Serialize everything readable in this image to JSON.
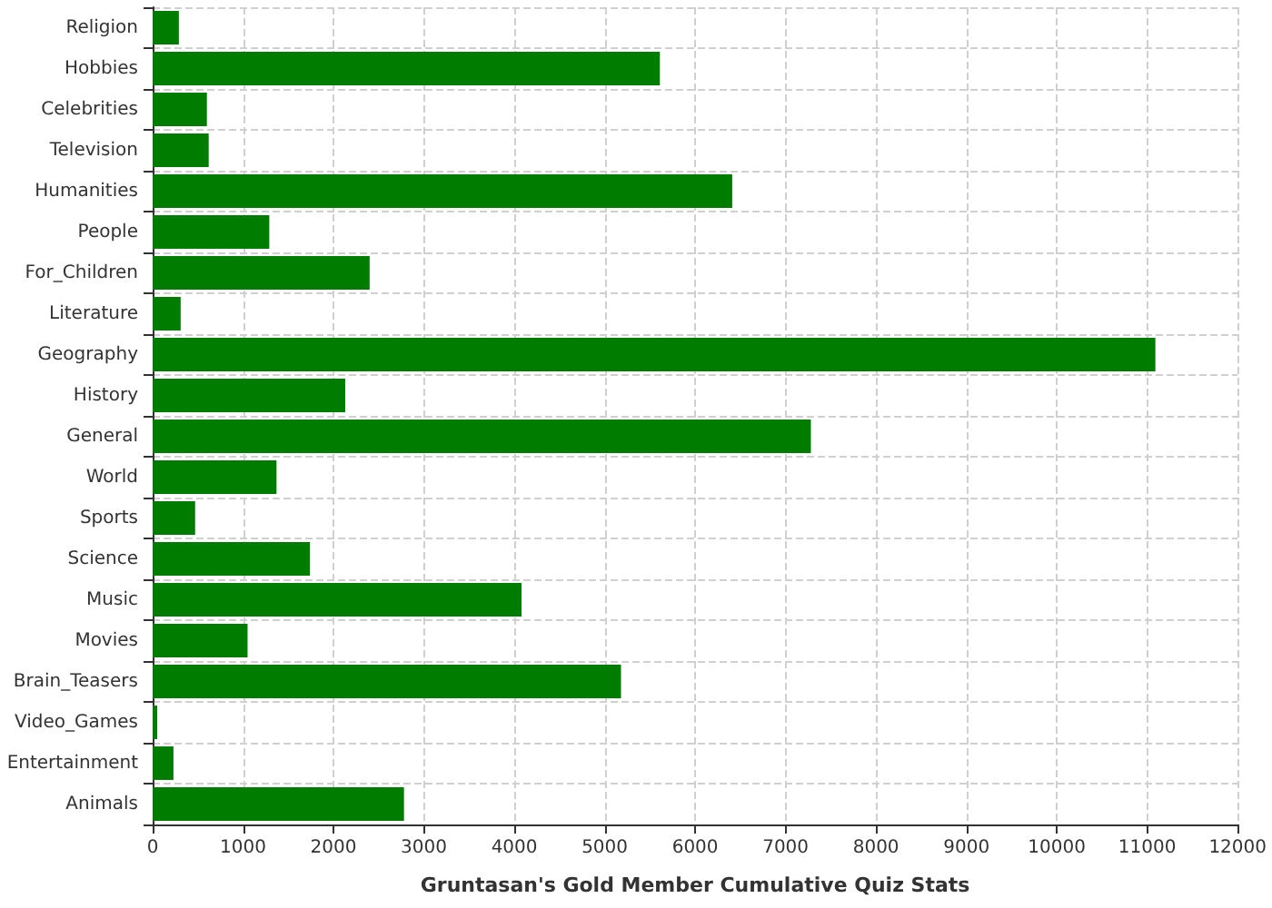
{
  "chart_data": {
    "type": "bar",
    "orientation": "horizontal",
    "xlabel": "Gruntasan's Gold Member Cumulative Quiz Stats",
    "categories": [
      "Religion",
      "Hobbies",
      "Celebrities",
      "Television",
      "Humanities",
      "People",
      "For_Children",
      "Literature",
      "Geography",
      "History",
      "General",
      "World",
      "Sports",
      "Science",
      "Music",
      "Movies",
      "Brain_Teasers",
      "Video_Games",
      "Entertainment",
      "Animals"
    ],
    "values": [
      290,
      5610,
      600,
      620,
      6410,
      1290,
      2400,
      310,
      11090,
      2130,
      7280,
      1370,
      470,
      1740,
      4080,
      1050,
      5180,
      50,
      230,
      2780
    ],
    "color": "#007c00",
    "xlim": [
      0,
      12000
    ],
    "xticks": [
      0,
      1000,
      2000,
      3000,
      4000,
      5000,
      6000,
      7000,
      8000,
      9000,
      10000,
      11000,
      12000
    ],
    "grid": true
  }
}
